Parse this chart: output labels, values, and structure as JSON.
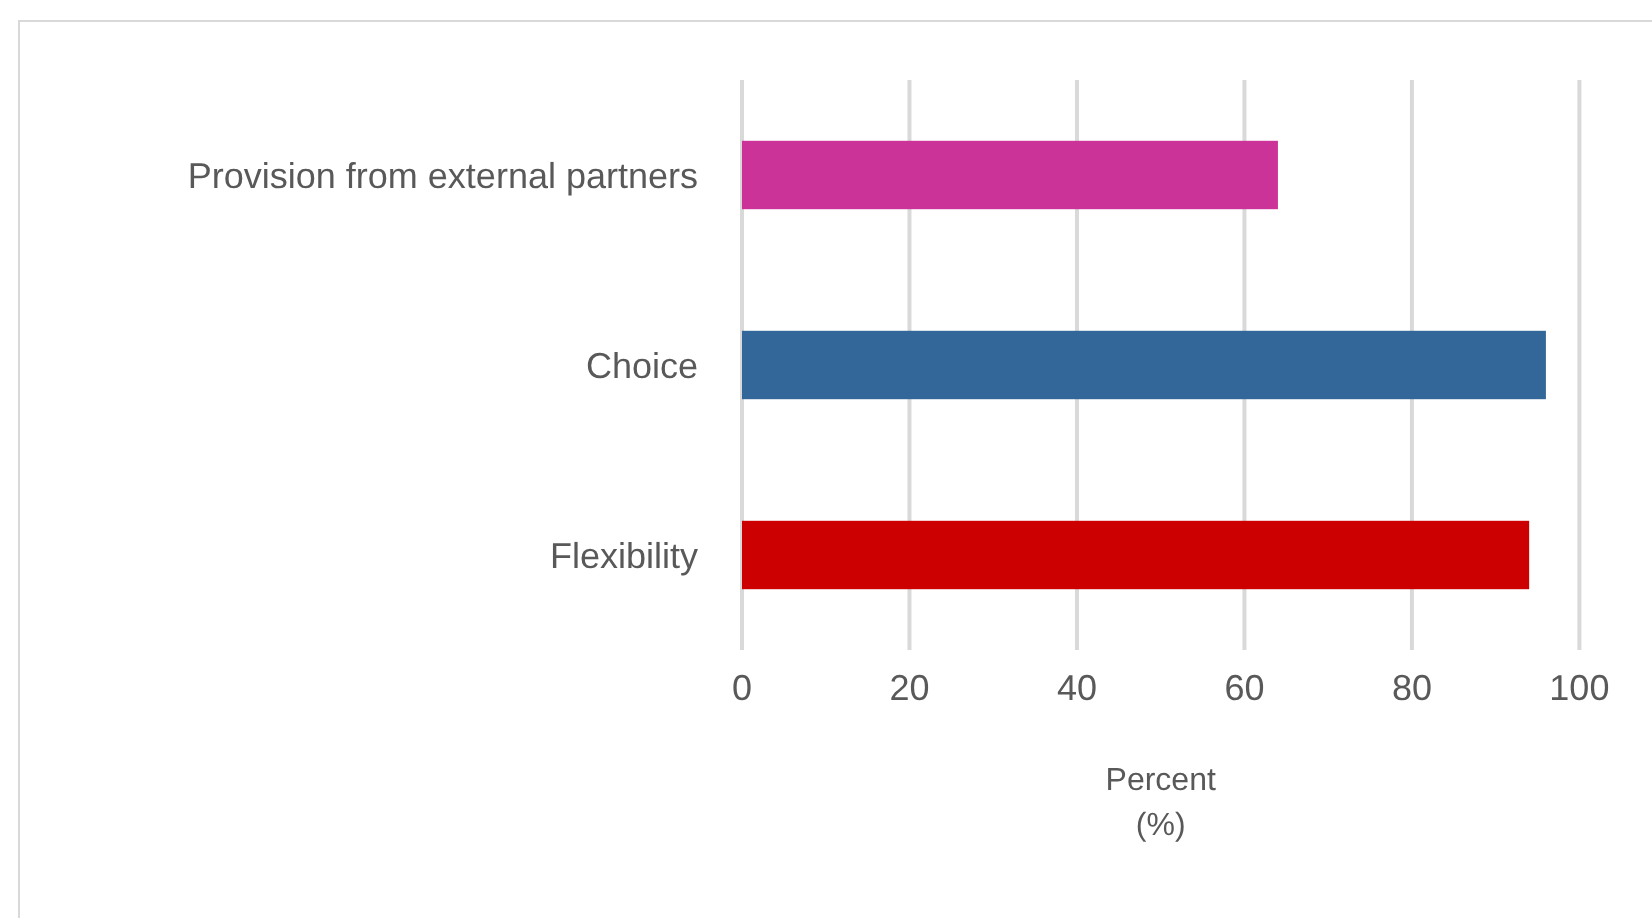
{
  "chart_data": {
    "type": "bar",
    "orientation": "horizontal",
    "xlabel": "Percent (%)",
    "categories": [
      "Provision from external partners",
      "Choice",
      "Flexibility"
    ],
    "values": [
      64,
      96,
      94
    ],
    "colors": [
      "#cc3399",
      "#336699",
      "#cc0000"
    ],
    "xlim": [
      0,
      100
    ],
    "xticks": [
      0,
      20,
      40,
      60,
      80,
      100
    ],
    "grid": "x"
  }
}
